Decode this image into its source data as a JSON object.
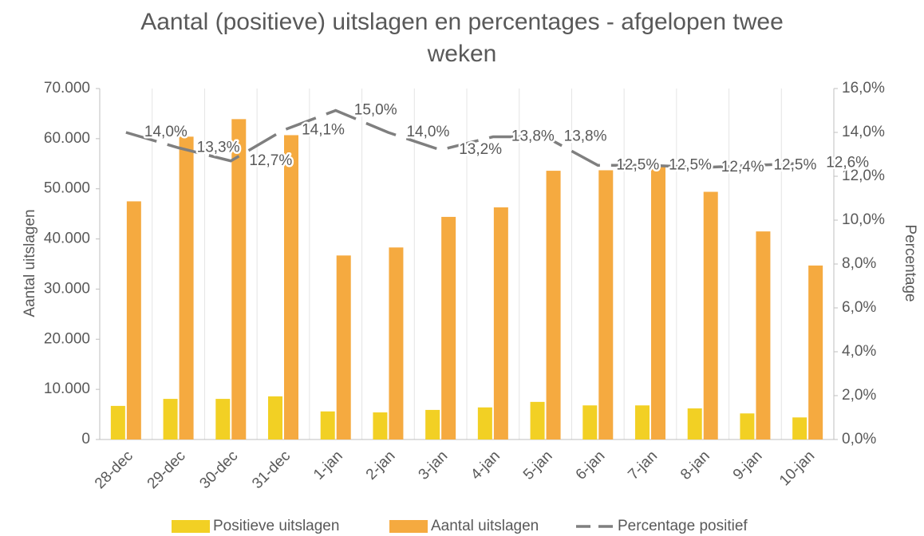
{
  "chart_data": {
    "type": "bar",
    "title": "Aantal (positieve) uitslagen en percentages - afgelopen twee weken",
    "y_label": "Aantal uitslagen",
    "y2_label": "Percentage",
    "categories": [
      "28-dec",
      "29-dec",
      "30-dec",
      "31-dec",
      "1-jan",
      "2-jan",
      "3-jan",
      "4-jan",
      "5-jan",
      "6-jan",
      "7-jan",
      "8-jan",
      "9-jan",
      "10-jan"
    ],
    "series": [
      {
        "name": "Positieve uitslagen",
        "type": "bar",
        "color": "#f2d024",
        "values": [
          6700,
          8100,
          8100,
          8600,
          5600,
          5400,
          5900,
          6400,
          7500,
          6800,
          6800,
          6200,
          5200,
          4400
        ]
      },
      {
        "name": "Aantal uitslagen",
        "type": "bar",
        "color": "#f5aa40",
        "values": [
          47500,
          60400,
          63900,
          60700,
          36700,
          38300,
          44400,
          46300,
          53600,
          53700,
          54700,
          49400,
          41500,
          34700
        ]
      },
      {
        "name": "Percentage positief",
        "type": "line",
        "axis": "y2",
        "color": "#7f7f7f",
        "dashed": true,
        "values": [
          14.0,
          13.3,
          12.7,
          14.1,
          15.0,
          14.0,
          13.2,
          13.8,
          13.8,
          12.5,
          12.5,
          12.4,
          12.5,
          12.6
        ],
        "value_labels": [
          "14,0%",
          "13,3%",
          "12,7%",
          "14,1%",
          "15,0%",
          "14,0%",
          "13,2%",
          "13,8%",
          "13,8%",
          "12,5%",
          "12,5%",
          "12,4%",
          "12,5%",
          "12,6%"
        ]
      }
    ],
    "ylim": [
      0,
      70000
    ],
    "yticks": [
      0,
      {
        "value": 10000,
        "label": "10.000"
      },
      {
        "value": 20000,
        "label": "20.000"
      },
      {
        "value": 30000,
        "label": "30.000"
      },
      {
        "value": 40000,
        "label": "40.000"
      },
      {
        "value": 50000,
        "label": "50.000"
      },
      {
        "value": 60000,
        "label": "60.000"
      },
      {
        "value": 70000,
        "label": "70.000"
      }
    ],
    "y2lim": [
      0,
      16
    ],
    "y2ticks": [
      {
        "value": 0,
        "label": "0,0%"
      },
      {
        "value": 2,
        "label": "2,0%"
      },
      {
        "value": 4,
        "label": "4,0%"
      },
      {
        "value": 6,
        "label": "6,0%"
      },
      {
        "value": 8,
        "label": "8,0%"
      },
      {
        "value": 10,
        "label": "10,0%"
      },
      {
        "value": 12,
        "label": "12,0%"
      },
      {
        "value": 14,
        "label": "14,0%"
      },
      {
        "value": 16,
        "label": "16,0%"
      }
    ],
    "legend": "bottom"
  }
}
